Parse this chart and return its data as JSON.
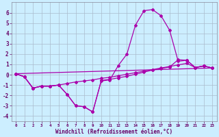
{
  "xlabel": "Windchill (Refroidissement éolien,°C)",
  "xlim": [
    -0.5,
    23.5
  ],
  "ylim": [
    -4.5,
    7.0
  ],
  "yticks": [
    -4,
    -3,
    -2,
    -1,
    0,
    1,
    2,
    3,
    4,
    5,
    6
  ],
  "xticks": [
    0,
    1,
    2,
    3,
    4,
    5,
    6,
    7,
    8,
    9,
    10,
    11,
    12,
    13,
    14,
    15,
    16,
    17,
    18,
    19,
    20,
    21,
    22,
    23
  ],
  "background_color": "#cceeff",
  "grid_color": "#aabbcc",
  "line_color": "#aa00aa",
  "line1_y": [
    0.1,
    -0.2,
    -1.3,
    -1.1,
    -1.1,
    -1.0,
    -1.9,
    -3.0,
    -3.1,
    -3.6,
    -0.6,
    -0.5,
    0.9,
    2.0,
    4.8,
    6.2,
    6.3,
    5.7,
    4.3,
    1.3,
    1.4,
    0.7,
    0.85,
    0.65
  ],
  "line2_y": [
    0.1,
    -0.2,
    -1.3,
    -1.1,
    -1.1,
    -1.0,
    -1.9,
    -3.0,
    -3.1,
    -3.6,
    -0.55,
    -0.45,
    -0.3,
    -0.15,
    0.05,
    0.25,
    0.45,
    0.6,
    0.75,
    1.45,
    1.4,
    0.7,
    0.85,
    0.65
  ],
  "line3_y": [
    0.1,
    -0.2,
    -1.3,
    -1.1,
    -1.1,
    -1.0,
    -0.85,
    -0.7,
    -0.6,
    -0.5,
    -0.35,
    -0.25,
    -0.1,
    0.05,
    0.2,
    0.35,
    0.5,
    0.65,
    0.8,
    0.95,
    1.1,
    0.7,
    0.85,
    0.65
  ],
  "line4_x": [
    0,
    23
  ],
  "line4_y": [
    0.1,
    0.65
  ]
}
